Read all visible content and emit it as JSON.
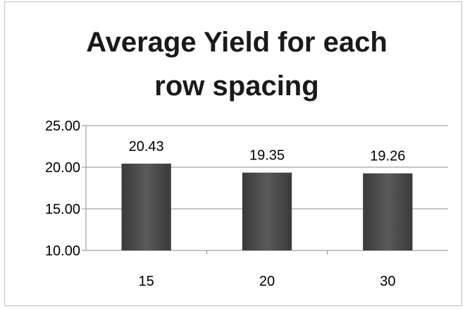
{
  "chart_data": {
    "type": "bar",
    "title_lines": [
      "Average Yield for each",
      "row spacing"
    ],
    "categories": [
      "15",
      "20",
      "30"
    ],
    "values": [
      20.43,
      19.35,
      19.26
    ],
    "data_labels": [
      "20.43",
      "19.35",
      "19.26"
    ],
    "ylim": [
      10,
      25
    ],
    "yticks": [
      10,
      15,
      20,
      25
    ],
    "ytick_labels": [
      "10.00",
      "15.00",
      "20.00",
      "25.00"
    ],
    "grid": true,
    "legend": "none",
    "bar_color": "#474747",
    "xlabel": "",
    "ylabel": ""
  }
}
